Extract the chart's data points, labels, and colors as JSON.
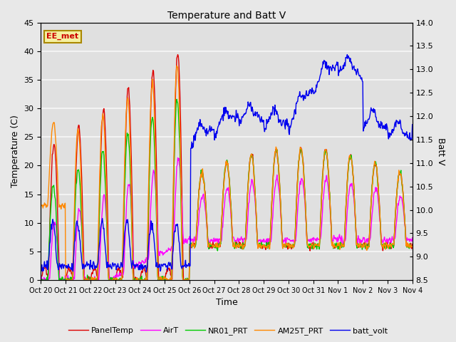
{
  "title": "Temperature and Batt V",
  "xlabel": "Time",
  "ylabel_left": "Temperature (C)",
  "ylabel_right": "Batt V",
  "annotation": "EE_met",
  "ylim_left": [
    0,
    45
  ],
  "ylim_right": [
    8.5,
    14.0
  ],
  "yticks_left": [
    0,
    5,
    10,
    15,
    20,
    25,
    30,
    35,
    40,
    45
  ],
  "yticks_right": [
    8.5,
    9.0,
    9.5,
    10.0,
    10.5,
    11.0,
    11.5,
    12.0,
    12.5,
    13.0,
    13.5,
    14.0
  ],
  "xtick_labels": [
    "Oct 20",
    "Oct 21",
    "Oct 22",
    "Oct 23",
    "Oct 24",
    "Oct 25",
    "Oct 26",
    "Oct 27",
    "Oct 28",
    "Oct 29",
    "Oct 30",
    "Oct 31",
    "Nov 1",
    "Nov 2",
    "Nov 3",
    "Nov 4"
  ],
  "colors": {
    "PanelTemp": "#dd0000",
    "AirT": "#ff00ff",
    "NR01_PRT": "#00cc00",
    "AM25T_PRT": "#ff8800",
    "batt_volt": "#0000ee"
  },
  "legend_entries": [
    "PanelTemp",
    "AirT",
    "NR01_PRT",
    "AM25T_PRT",
    "batt_volt"
  ],
  "fig_bg": "#e8e8e8",
  "plot_bg": "#e0e0e0",
  "grid_color": "#f8f8f8",
  "num_points": 720,
  "figsize": [
    6.4,
    4.8
  ],
  "dpi": 100
}
